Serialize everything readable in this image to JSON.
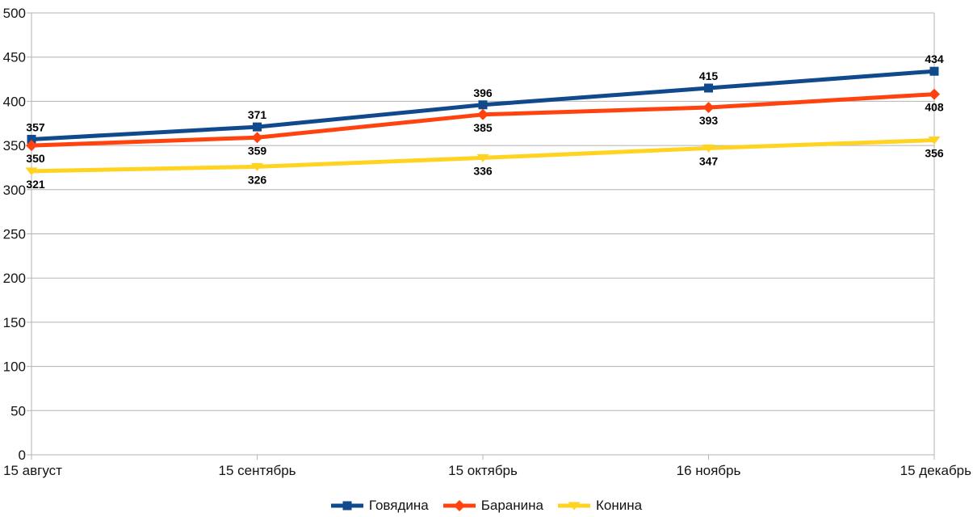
{
  "chart_data": {
    "type": "line",
    "title": "",
    "xlabel": "",
    "ylabel": "",
    "categories": [
      "15 август",
      "15 сентябрь",
      "15 октябрь",
      "16 ноябрь",
      "15 декабрь"
    ],
    "series": [
      {
        "name": "Говядина",
        "color": "#114a8c",
        "marker": "square",
        "label_position": "above",
        "values": [
          357,
          371,
          396,
          415,
          434
        ]
      },
      {
        "name": "Баранина",
        "color": "#ff420e",
        "marker": "diamond",
        "label_position": "below",
        "values": [
          350,
          359,
          385,
          393,
          408
        ]
      },
      {
        "name": "Конина",
        "color": "#ffd320",
        "marker": "triangle-down",
        "label_position": "below",
        "values": [
          321,
          326,
          336,
          347,
          356
        ]
      }
    ],
    "ylim": [
      0,
      500
    ],
    "yticks": [
      0,
      50,
      100,
      150,
      200,
      250,
      300,
      350,
      400,
      450,
      500
    ],
    "grid": "horizontal",
    "grid_color": "#b3b3b3",
    "axis_color": "#b3b3b3",
    "text_color": "#141414",
    "data_label_color": "#000000",
    "background": "#ffffff",
    "legend_position": "bottom",
    "show_data_labels": true
  }
}
